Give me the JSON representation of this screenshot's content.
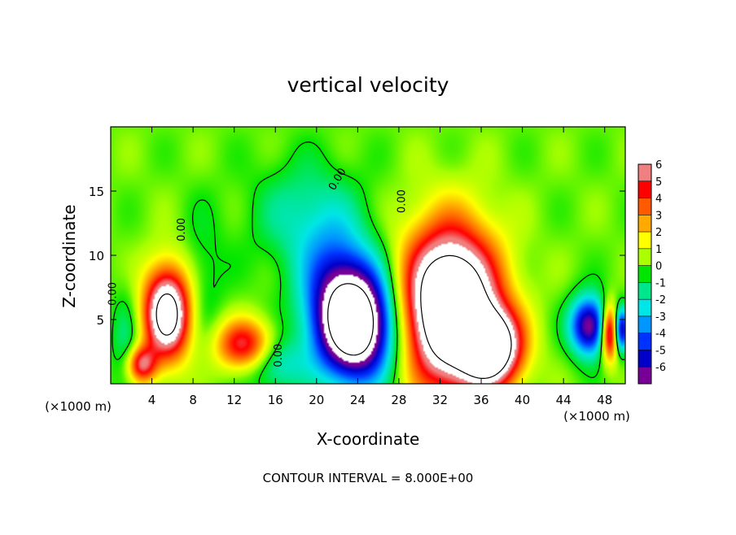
{
  "chart_data": {
    "type": "heatmap",
    "title": "vertical velocity",
    "xlabel": "X-coordinate",
    "ylabel": "Z-coordinate",
    "x_unit_left": "(×1000 m)",
    "x_unit_right": "(×1000 m)",
    "footer": "CONTOUR INTERVAL = 8.000E+00",
    "xlim": [
      0,
      50
    ],
    "ylim": [
      0,
      20
    ],
    "x_ticks": [
      4,
      8,
      12,
      16,
      20,
      24,
      28,
      32,
      36,
      40,
      44,
      48
    ],
    "y_ticks": [
      5,
      10,
      15
    ],
    "grid": false,
    "colorbar": {
      "position": "right",
      "ticks": [
        6,
        5,
        4,
        3,
        2,
        1,
        0,
        -1,
        -2,
        -3,
        -4,
        -5,
        -6
      ],
      "colors": [
        "#f08080",
        "#ff0000",
        "#ff5a00",
        "#ffaa00",
        "#ffff00",
        "#aaff00",
        "#00e600",
        "#00e68c",
        "#00e6e6",
        "#0096ff",
        "#0032ff",
        "#0000c8",
        "#780096"
      ]
    },
    "background_value": 0.6,
    "features": [
      {
        "type": "updraft",
        "x": 33,
        "z": 6,
        "sx": 3.2,
        "sz": 4.2,
        "amp": 12
      },
      {
        "type": "updraft",
        "x": 37,
        "z": 2.8,
        "sx": 2.0,
        "sz": 2.0,
        "amp": 9
      },
      {
        "type": "updraft",
        "x": 5.5,
        "z": 5.5,
        "sx": 1.6,
        "sz": 2.5,
        "amp": 9
      },
      {
        "type": "updraft",
        "x": 3,
        "z": 1.5,
        "sx": 1.0,
        "sz": 1.0,
        "amp": 5
      },
      {
        "type": "updraft",
        "x": 13,
        "z": 3,
        "sx": 2.0,
        "sz": 1.4,
        "amp": 5
      },
      {
        "type": "updraft",
        "x": 48.5,
        "z": 4,
        "sx": 0.6,
        "sz": 1.5,
        "amp": 7
      },
      {
        "type": "downdraft",
        "x": 24,
        "z": 4.5,
        "sx": 2.6,
        "sz": 3.0,
        "amp": -10
      },
      {
        "type": "downdraft",
        "x": 22,
        "z": 7,
        "sx": 2.5,
        "sz": 3.5,
        "amp": -4
      },
      {
        "type": "downdraft",
        "x": 46.5,
        "z": 4.5,
        "sx": 1.3,
        "sz": 1.6,
        "amp": -7
      },
      {
        "type": "downdraft",
        "x": 49.6,
        "z": 4.2,
        "sx": 0.5,
        "sz": 1.2,
        "amp": -6
      },
      {
        "type": "downdraft",
        "x": 19,
        "z": 13,
        "sx": 3.5,
        "sz": 3.0,
        "amp": -2
      },
      {
        "type": "downdraft",
        "x": 16,
        "z": 1.5,
        "sx": 2.0,
        "sz": 1.5,
        "amp": -2.5
      },
      {
        "type": "downdraft",
        "x": 9,
        "z": 8,
        "sx": 1.5,
        "sz": 4.0,
        "amp": -1
      },
      {
        "type": "downdraft",
        "x": 1.5,
        "z": 3,
        "sx": 1.0,
        "sz": 3.0,
        "amp": -1.5
      }
    ],
    "contour_labels": [
      {
        "text": "0.00",
        "x": 0.5,
        "z": 7.0,
        "rotate": -90
      },
      {
        "text": "0.00",
        "x": 7.2,
        "z": 12.0,
        "rotate": -90
      },
      {
        "text": "0.00",
        "x": 16.6,
        "z": 2.2,
        "rotate": -90
      },
      {
        "text": "0.00",
        "x": 22.3,
        "z": 15.8,
        "rotate": -60
      },
      {
        "text": "0.00",
        "x": 28.6,
        "z": 14.2,
        "rotate": -90
      }
    ]
  }
}
